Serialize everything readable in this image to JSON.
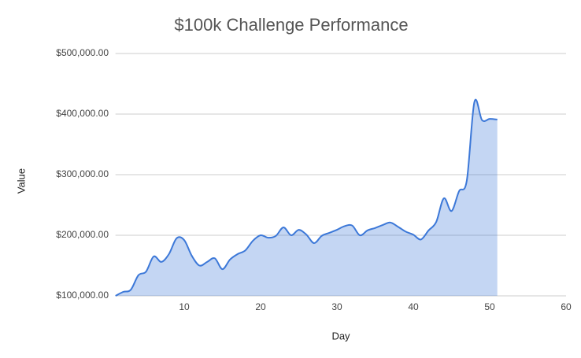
{
  "chart_data": {
    "type": "area",
    "title": "$100k Challenge Performance",
    "x_label": "Day",
    "y_label": "Value",
    "x": [
      1,
      2,
      3,
      4,
      5,
      6,
      7,
      8,
      9,
      10,
      11,
      12,
      13,
      14,
      15,
      16,
      17,
      18,
      19,
      20,
      21,
      22,
      23,
      24,
      25,
      26,
      27,
      28,
      29,
      30,
      31,
      32,
      33,
      34,
      35,
      36,
      37,
      38,
      39,
      40,
      41,
      42,
      43,
      44,
      45,
      46,
      47,
      48,
      49,
      50,
      51
    ],
    "series": [
      {
        "name": "Value",
        "color": "#3c78d8",
        "values": [
          100000,
          106500,
          110000,
          134000,
          140000,
          165000,
          156000,
          169000,
          195000,
          192000,
          166000,
          150000,
          156000,
          162000,
          144000,
          160000,
          169000,
          175000,
          191000,
          200000,
          196000,
          199000,
          213000,
          200000,
          209000,
          201000,
          187000,
          199000,
          204000,
          209000,
          215000,
          216000,
          200000,
          208000,
          212000,
          217000,
          221000,
          214000,
          206000,
          201000,
          193000,
          208000,
          222000,
          261000,
          240000,
          273000,
          290000,
          420000,
          390000,
          392000,
          391000
        ]
      }
    ],
    "xlim": [
      1,
      60
    ],
    "xticks": [
      10,
      20,
      30,
      40,
      50,
      60
    ],
    "ylim": [
      100000,
      500000
    ],
    "yticks": [
      {
        "value": 100000,
        "label": "$100,000.00"
      },
      {
        "value": 200000,
        "label": "$200,000.00"
      },
      {
        "value": 300000,
        "label": "$300,000.00"
      },
      {
        "value": 400000,
        "label": "$400,000.00"
      },
      {
        "value": 500000,
        "label": "$500,000.00"
      }
    ],
    "grid": true
  }
}
